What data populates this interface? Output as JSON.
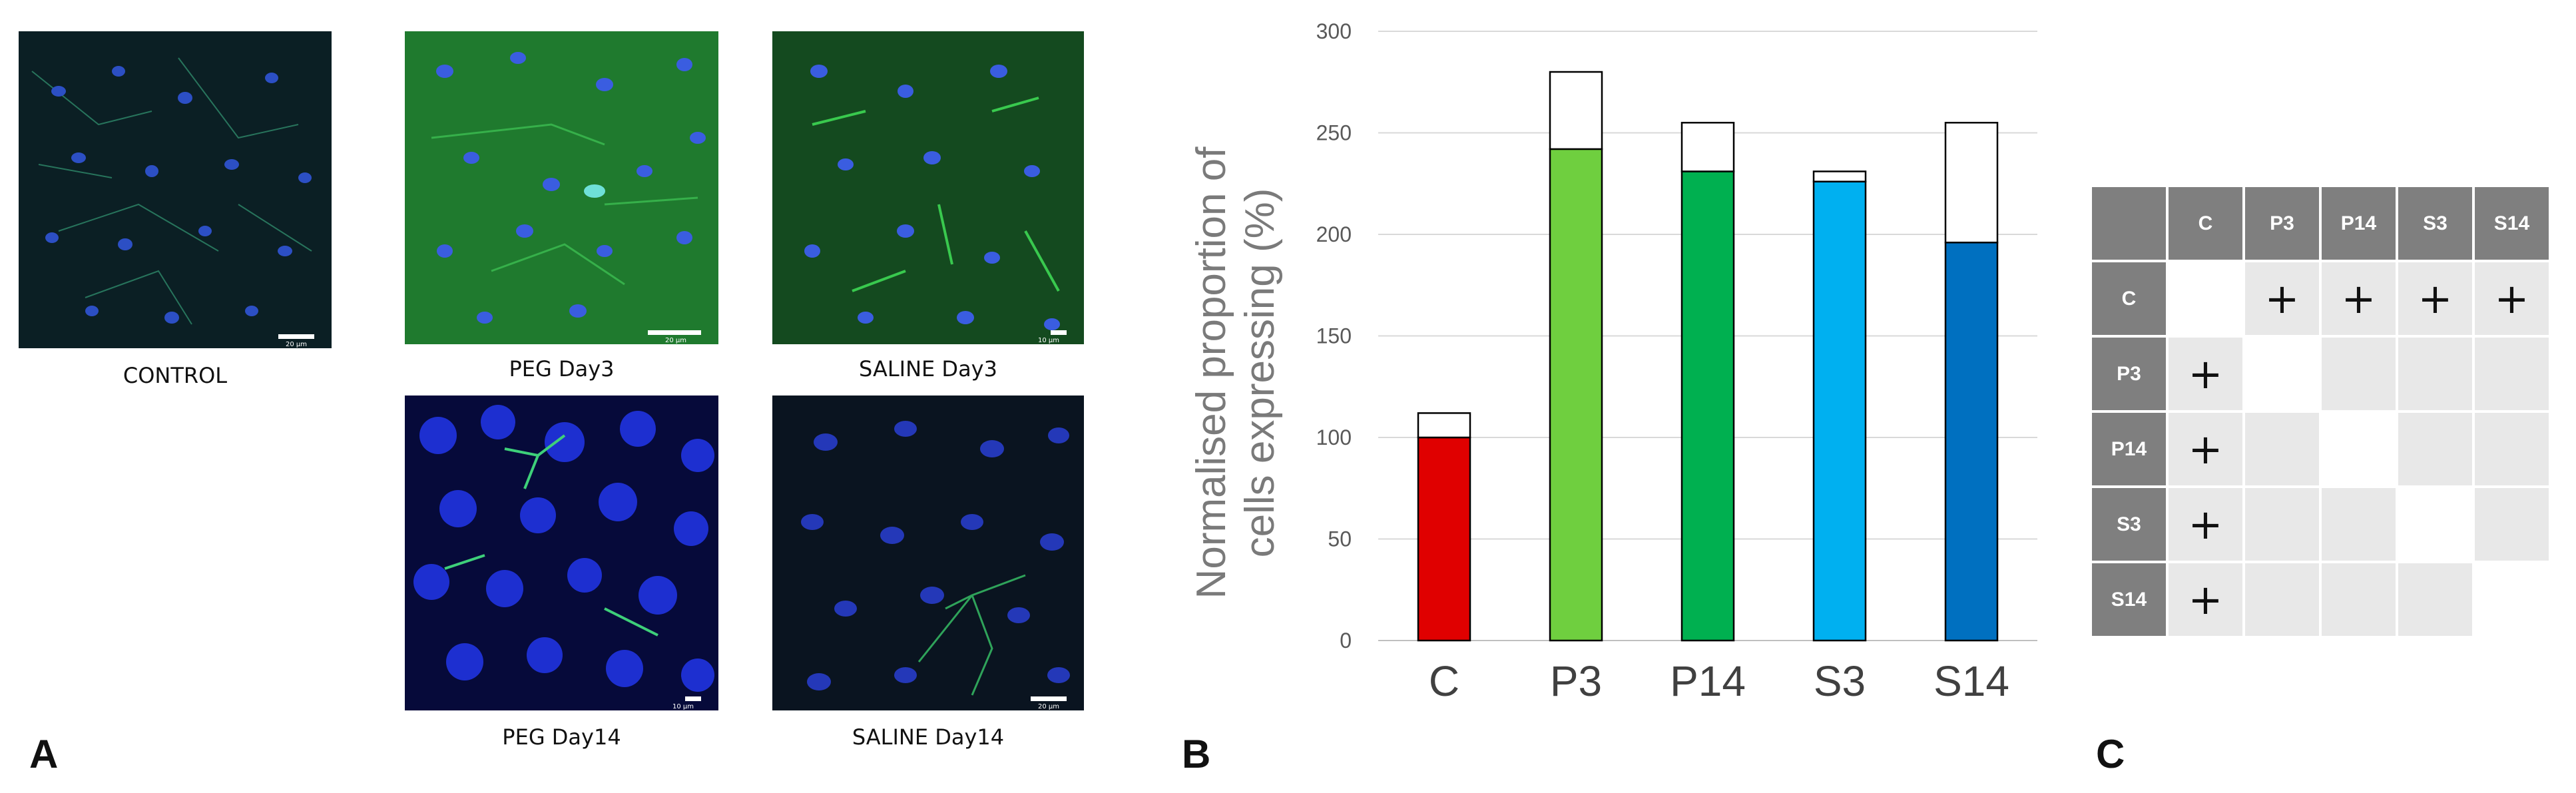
{
  "panels": {
    "label_a": "A",
    "label_b": "B",
    "label_c": "C"
  },
  "images": [
    {
      "caption": "CONTROL",
      "scale_label": "20 µm"
    },
    {
      "caption": "PEG Day3",
      "scale_label": "20 µm"
    },
    {
      "caption": "SALINE Day3",
      "scale_label": "10 µm"
    },
    {
      "caption": "PEG Day14",
      "scale_label": "10 µm"
    },
    {
      "caption": "SALINE Day14",
      "scale_label": "20 µm"
    }
  ],
  "chart_data": {
    "type": "bar",
    "stacked": true,
    "categories": [
      "C",
      "P3",
      "P14",
      "S3",
      "S14"
    ],
    "values": [
      100,
      242,
      231,
      226,
      196
    ],
    "upper_values": [
      12,
      38,
      24,
      5,
      59
    ],
    "totals": [
      112,
      280,
      255,
      231,
      255
    ],
    "bar_colors": [
      "#e00000",
      "#6fcf3f",
      "#00b050",
      "#00b0f0",
      "#0070c0"
    ],
    "upper_color": "#ffffff",
    "title": "",
    "xlabel": "",
    "ylabel": "Normalised proportion of cells expressing (%)",
    "ylabel_lines": [
      "Normalised proportion of",
      "cells expressing (%)"
    ],
    "ylim": [
      0,
      300
    ],
    "yticks": [
      0,
      50,
      100,
      150,
      200,
      250,
      300
    ],
    "grid": true
  },
  "matrix": {
    "headers": [
      "C",
      "P3",
      "P14",
      "S3",
      "S14"
    ],
    "sign": "+",
    "rows": [
      [
        "",
        "+",
        "+",
        "+",
        "+"
      ],
      [
        "+",
        "",
        "",
        "",
        ""
      ],
      [
        "+",
        "",
        "",
        "",
        ""
      ],
      [
        "+",
        "",
        "",
        "",
        ""
      ],
      [
        "+",
        "",
        "",
        "",
        ""
      ]
    ]
  }
}
